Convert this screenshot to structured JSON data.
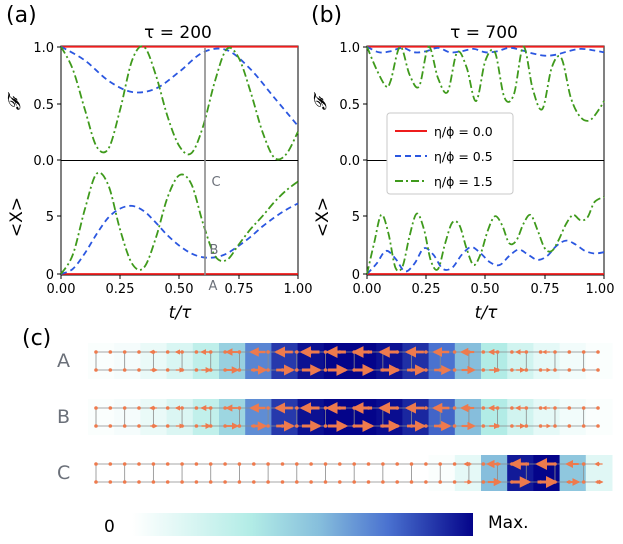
{
  "chart_data": [
    {
      "panel": "(a)",
      "type": "line",
      "title": "τ = 200",
      "xlabel": "t/τ",
      "xlim": [
        0,
        1
      ],
      "xticks": [
        "0.00",
        "0.25",
        "0.50",
        "0.75",
        "1.00"
      ],
      "top": {
        "ylabel": "𝓕",
        "ylim": [
          0,
          1.05
        ],
        "yticks": [
          "0.0",
          "0.5",
          "1.0"
        ],
        "series": [
          {
            "name": "η/ϕ = 0.0",
            "color": "#ee1c1c",
            "dash": "solid",
            "x": [
              0,
              0.25,
              0.5,
              0.75,
              1.0
            ],
            "y": [
              1.0,
              1.0,
              1.0,
              1.0,
              1.0
            ]
          },
          {
            "name": "η/ϕ = 0.5",
            "color": "#2b57e0",
            "dash": "dashed",
            "x": [
              0,
              0.1,
              0.2,
              0.3,
              0.4,
              0.5,
              0.6,
              0.7,
              0.8,
              0.9,
              1.0
            ],
            "y": [
              1.0,
              0.88,
              0.7,
              0.6,
              0.63,
              0.78,
              0.95,
              0.97,
              0.8,
              0.55,
              0.3
            ]
          },
          {
            "name": "η/ϕ = 1.5",
            "color": "#3f9a1c",
            "dash": "dashdot",
            "x": [
              0,
              0.05,
              0.1,
              0.15,
              0.2,
              0.25,
              0.3,
              0.35,
              0.4,
              0.45,
              0.5,
              0.55,
              0.6,
              0.65,
              0.7,
              0.75,
              0.8,
              0.85,
              0.9,
              0.95,
              1.0
            ],
            "y": [
              1.0,
              0.8,
              0.45,
              0.12,
              0.1,
              0.45,
              0.88,
              1.0,
              0.75,
              0.38,
              0.12,
              0.06,
              0.3,
              0.7,
              0.98,
              0.9,
              0.6,
              0.25,
              0.02,
              0.05,
              0.25
            ]
          }
        ]
      },
      "bottom": {
        "ylabel": "<X>",
        "ylim": [
          0,
          8.8
        ],
        "yticks": [
          "0",
          "5"
        ],
        "series": [
          {
            "name": "η/ϕ = 0.0",
            "color": "#ee1c1c",
            "dash": "solid",
            "x": [
              0,
              0.5,
              1.0
            ],
            "y": [
              0,
              0,
              0
            ]
          },
          {
            "name": "η/ϕ = 0.5",
            "color": "#2b57e0",
            "dash": "dashed",
            "x": [
              0,
              0.05,
              0.1,
              0.15,
              0.2,
              0.25,
              0.3,
              0.35,
              0.4,
              0.45,
              0.5,
              0.55,
              0.6,
              0.65,
              0.7,
              0.75,
              0.8,
              0.85,
              0.9,
              0.95,
              1.0
            ],
            "y": [
              0,
              0.4,
              1.6,
              3.1,
              4.4,
              5.1,
              5.3,
              4.9,
              4.0,
              3.0,
              2.2,
              1.6,
              1.3,
              1.3,
              1.6,
              2.2,
              2.9,
              3.7,
              4.4,
              5.0,
              5.5
            ]
          },
          {
            "name": "η/ϕ = 1.5",
            "color": "#3f9a1c",
            "dash": "dashdot",
            "x": [
              0,
              0.05,
              0.1,
              0.15,
              0.2,
              0.25,
              0.3,
              0.35,
              0.4,
              0.45,
              0.5,
              0.55,
              0.6,
              0.65,
              0.7,
              0.75,
              0.8,
              0.85,
              0.9,
              0.95,
              1.0
            ],
            "y": [
              0,
              1.5,
              5.0,
              7.8,
              6.9,
              3.4,
              0.8,
              0.5,
              2.8,
              6.0,
              7.7,
              7.0,
              3.9,
              1.4,
              1.1,
              2.3,
              3.5,
              4.5,
              5.6,
              6.5,
              7.2
            ]
          }
        ],
        "marker_line": {
          "x": 0.61,
          "labels": [
            "A",
            "B",
            "C"
          ]
        }
      }
    },
    {
      "panel": "(b)",
      "type": "line",
      "title": "τ = 700",
      "xlabel": "t/τ",
      "xlim": [
        0,
        1
      ],
      "xticks": [
        "0.00",
        "0.25",
        "0.50",
        "0.75",
        "1.00"
      ],
      "legend": {
        "position": "center-right",
        "entries": [
          "η/ϕ = 0.0",
          "η/ϕ = 0.5",
          "η/ϕ = 1.5"
        ]
      },
      "top": {
        "ylabel": "𝓕",
        "ylim": [
          0,
          1.05
        ],
        "yticks": [
          "0.0",
          "0.5",
          "1.0"
        ],
        "series": [
          {
            "name": "η/ϕ = 0.0",
            "color": "#ee1c1c",
            "dash": "solid",
            "x": [
              0,
              0.5,
              1.0
            ],
            "y": [
              1.0,
              1.0,
              1.0
            ]
          },
          {
            "name": "η/ϕ = 0.5",
            "color": "#2b57e0",
            "dash": "dashed",
            "x": [
              0,
              0.05,
              0.1,
              0.15,
              0.2,
              0.25,
              0.3,
              0.35,
              0.4,
              0.45,
              0.5,
              0.55,
              0.6,
              0.65,
              0.7,
              0.75,
              0.8,
              0.85,
              0.9,
              0.95,
              1.0
            ],
            "y": [
              1.0,
              0.95,
              0.96,
              0.99,
              0.95,
              0.96,
              0.99,
              0.95,
              0.96,
              0.98,
              0.95,
              0.96,
              0.99,
              0.97,
              0.94,
              0.92,
              0.93,
              0.96,
              0.98,
              0.97,
              0.95
            ]
          },
          {
            "name": "η/ϕ = 1.5",
            "color": "#3f9a1c",
            "dash": "dashdot",
            "x": [
              0,
              0.04,
              0.08,
              0.1,
              0.14,
              0.18,
              0.22,
              0.26,
              0.3,
              0.34,
              0.38,
              0.42,
              0.46,
              0.5,
              0.54,
              0.58,
              0.62,
              0.66,
              0.7,
              0.74,
              0.78,
              0.82,
              0.86,
              0.9,
              0.94,
              0.98,
              1.0
            ],
            "y": [
              1.0,
              0.8,
              0.65,
              0.7,
              1.0,
              0.75,
              0.65,
              1.0,
              0.72,
              0.6,
              0.95,
              0.82,
              0.52,
              0.88,
              0.95,
              0.55,
              0.58,
              1.0,
              0.62,
              0.45,
              0.82,
              0.9,
              0.55,
              0.38,
              0.35,
              0.45,
              0.52
            ]
          }
        ]
      },
      "bottom": {
        "ylabel": "<X>",
        "ylim": [
          0,
          8.8
        ],
        "yticks": [
          "0",
          "5"
        ],
        "series": [
          {
            "name": "η/ϕ = 0.0",
            "color": "#ee1c1c",
            "dash": "solid",
            "x": [
              0,
              0.5,
              1.0
            ],
            "y": [
              0,
              0,
              0
            ]
          },
          {
            "name": "η/ϕ = 0.5",
            "color": "#2b57e0",
            "dash": "dashed",
            "x": [
              0,
              0.04,
              0.08,
              0.12,
              0.16,
              0.2,
              0.24,
              0.28,
              0.32,
              0.36,
              0.4,
              0.44,
              0.48,
              0.52,
              0.56,
              0.6,
              0.64,
              0.68,
              0.72,
              0.76,
              0.8,
              0.84,
              0.88,
              0.92,
              0.96,
              1.0
            ],
            "y": [
              0,
              0.8,
              1.8,
              1.2,
              0.2,
              0.8,
              2.0,
              1.5,
              0.4,
              0.5,
              1.5,
              2.1,
              1.6,
              0.9,
              0.7,
              1.4,
              1.9,
              1.5,
              1.1,
              1.4,
              2.2,
              2.6,
              2.3,
              1.8,
              1.6,
              1.7
            ]
          },
          {
            "name": "η/ϕ = 1.5",
            "color": "#3f9a1c",
            "dash": "dashdot",
            "x": [
              0,
              0.03,
              0.06,
              0.09,
              0.12,
              0.15,
              0.18,
              0.21,
              0.24,
              0.27,
              0.3,
              0.33,
              0.36,
              0.39,
              0.42,
              0.45,
              0.48,
              0.51,
              0.54,
              0.57,
              0.6,
              0.63,
              0.66,
              0.69,
              0.72,
              0.75,
              0.78,
              0.81,
              0.84,
              0.87,
              0.9,
              0.93,
              0.96,
              1.0
            ],
            "y": [
              0,
              2.4,
              4.6,
              3.2,
              0.5,
              0.6,
              3.0,
              4.7,
              3.5,
              1.0,
              0.4,
              2.4,
              4.0,
              3.8,
              2.0,
              0.7,
              1.6,
              3.4,
              4.5,
              3.8,
              2.4,
              2.6,
              3.9,
              4.6,
              3.4,
              2.0,
              1.8,
              2.7,
              3.9,
              4.6,
              4.2,
              4.4,
              5.6,
              6.0
            ]
          }
        ]
      }
    },
    {
      "panel": "(c)",
      "type": "heatmap",
      "rows": [
        {
          "label": "A",
          "intensity": [
            0.02,
            0.04,
            0.08,
            0.15,
            0.25,
            0.45,
            0.7,
            0.88,
            0.97,
            1.0,
            1.0,
            0.97,
            0.9,
            0.75,
            0.55,
            0.3,
            0.18,
            0.1,
            0.05,
            0.02
          ]
        },
        {
          "label": "B",
          "intensity": [
            0.02,
            0.04,
            0.08,
            0.14,
            0.24,
            0.42,
            0.68,
            0.88,
            0.97,
            1.0,
            1.0,
            0.98,
            0.92,
            0.78,
            0.55,
            0.3,
            0.18,
            0.1,
            0.05,
            0.02
          ]
        },
        {
          "label": "C",
          "intensity": [
            0.0,
            0.0,
            0.0,
            0.0,
            0.0,
            0.0,
            0.0,
            0.0,
            0.0,
            0.0,
            0.0,
            0.0,
            0.0,
            0.02,
            0.1,
            0.55,
            0.95,
            1.0,
            0.5,
            0.12
          ]
        }
      ],
      "colorbar": {
        "min_label": "0",
        "max_label": "Max."
      }
    }
  ]
}
